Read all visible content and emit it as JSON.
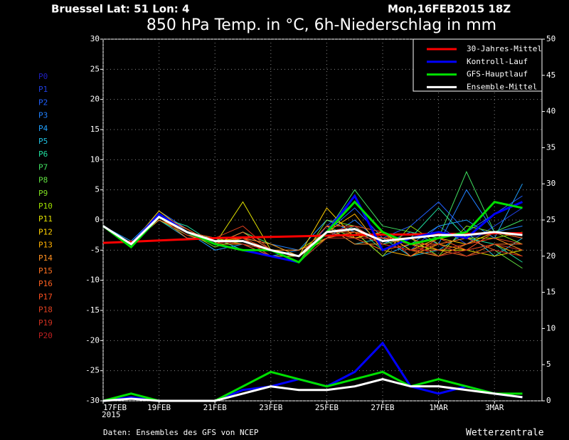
{
  "chart_data": {
    "type": "line",
    "location": "Bruessel  Lat: 51 Lon: 4",
    "run": "Mon,16FEB2015 18Z",
    "title": "850 hPa Temp. in °C, 6h-Niederschlag in mm",
    "source": "Daten: Ensembles des GFS von NCEP",
    "credit": "Wetterzentrale",
    "x_year": "2015",
    "xlim": [
      0,
      15.7
    ],
    "xticks": [
      {
        "value": 0,
        "label": "17FEB"
      },
      {
        "value": 2,
        "label": "19FEB"
      },
      {
        "value": 4,
        "label": "21FEB"
      },
      {
        "value": 6,
        "label": "23FEB"
      },
      {
        "value": 8,
        "label": "25FEB"
      },
      {
        "value": 10,
        "label": "27FEB"
      },
      {
        "value": 12,
        "label": "1MAR"
      },
      {
        "value": 14,
        "label": "3MAR"
      }
    ],
    "ylim": [
      -30,
      30
    ],
    "yticks": [
      -30,
      -25,
      -20,
      -15,
      -10,
      -5,
      0,
      5,
      10,
      15,
      20,
      25,
      30
    ],
    "y2lim": [
      0,
      50
    ],
    "y2ticks": [
      0,
      5,
      10,
      15,
      20,
      25,
      30,
      35,
      40,
      45,
      50
    ],
    "grid": true,
    "x": [
      0,
      1,
      2,
      3,
      4,
      5,
      6,
      7,
      8,
      9,
      10,
      11,
      12,
      13,
      14,
      15
    ],
    "series": [
      {
        "name": "P0",
        "color": "#2020c0",
        "values": [
          -1,
          -4,
          1,
          -2,
          -4,
          -3,
          -6,
          -6,
          -2,
          -1,
          -4,
          -3,
          -2,
          -3,
          -2,
          -3
        ]
      },
      {
        "name": "P1",
        "color": "#2040e0",
        "values": [
          -1,
          -4.5,
          0.5,
          -2.5,
          -3,
          -4,
          -5,
          -7,
          -1,
          3,
          -2,
          -5,
          -1,
          -4,
          -1,
          2
        ]
      },
      {
        "name": "P2",
        "color": "#2060ff",
        "values": [
          -1,
          -4,
          1.5,
          -1.5,
          -4,
          -2,
          -5,
          -6,
          -2,
          2,
          -3,
          -1,
          3,
          -2,
          1,
          4
        ]
      },
      {
        "name": "P3",
        "color": "#2080ff",
        "values": [
          -1,
          -4,
          0.5,
          -2,
          -3,
          -3,
          -4,
          -5,
          -3,
          0,
          -4,
          -2,
          -4,
          5,
          -2,
          -1
        ]
      },
      {
        "name": "P4",
        "color": "#20a0ff",
        "values": [
          -1,
          -3.5,
          1,
          -2,
          -5,
          -4,
          -6,
          -5,
          0,
          -2,
          -6,
          -4,
          -1,
          0,
          -3,
          6
        ]
      },
      {
        "name": "P5",
        "color": "#20c0e0",
        "values": [
          -1,
          -4,
          0,
          -3,
          -3,
          -5,
          -5,
          -6,
          -1,
          -4,
          -3,
          -6,
          -5,
          -2,
          -6,
          -3
        ]
      },
      {
        "name": "P6",
        "color": "#20e0a0",
        "values": [
          -1,
          -4,
          0.5,
          -1,
          -4,
          -3,
          -6,
          -7,
          -3,
          -1,
          -5,
          -3,
          2,
          -3,
          -4,
          -7
        ]
      },
      {
        "name": "P7",
        "color": "#40e060",
        "values": [
          -1,
          -4.5,
          1,
          -2,
          -4,
          -2,
          -4,
          -6,
          -2,
          5,
          -1,
          -2,
          -3,
          8,
          -2,
          0
        ]
      },
      {
        "name": "P8",
        "color": "#60e040",
        "values": [
          -1,
          -4,
          0,
          -2.5,
          -3,
          -4,
          -5,
          -6,
          -1,
          -3,
          -2,
          -5,
          -4,
          -6,
          -5,
          -8
        ]
      },
      {
        "name": "P9",
        "color": "#80e020",
        "values": [
          -1,
          -4,
          0.5,
          -2,
          -4.5,
          -3,
          -6,
          -7,
          0,
          -1,
          -4,
          -3,
          -6,
          -1,
          -2,
          -4
        ]
      },
      {
        "name": "P10",
        "color": "#a0e000",
        "values": [
          -1,
          -4,
          1,
          -2,
          -3,
          -4,
          -5,
          -5,
          -2,
          -2,
          -6,
          -1,
          -4,
          -3,
          -3,
          -2
        ]
      },
      {
        "name": "P11",
        "color": "#e0e000",
        "values": [
          -1,
          -4.5,
          0.5,
          -1.5,
          -4,
          3,
          -5,
          -6,
          -3,
          -2,
          -3,
          -4,
          -5,
          -5,
          -6,
          -5
        ]
      },
      {
        "name": "P12",
        "color": "#ffd000",
        "values": [
          -1,
          -4,
          1.5,
          -2,
          -3.5,
          -3,
          -6,
          -6,
          2,
          -3,
          -2,
          -5,
          -3,
          -4,
          -2,
          -3
        ]
      },
      {
        "name": "P13",
        "color": "#ffb000",
        "values": [
          -1,
          -4,
          0.5,
          -2.5,
          -4,
          -4,
          -5,
          -7,
          -2,
          1,
          -5,
          -6,
          -4,
          -5,
          -4,
          -6
        ]
      },
      {
        "name": "P14",
        "color": "#ff9020",
        "values": [
          -1,
          -4,
          1,
          -2,
          -3,
          -3,
          -4,
          -6,
          -1,
          -4,
          -4,
          -5,
          -6,
          -4,
          -3,
          -5
        ]
      },
      {
        "name": "P15",
        "color": "#ff7020",
        "values": [
          -1,
          -4,
          0,
          -2,
          -4,
          -2,
          -5,
          -5,
          -3,
          -2,
          -3,
          -3,
          -5,
          -6,
          -4,
          -4
        ]
      },
      {
        "name": "P16",
        "color": "#ff6020",
        "values": [
          -1,
          -4.5,
          0.5,
          -3,
          -3.5,
          -4,
          -6,
          -7,
          -2,
          -3,
          -5,
          -4,
          -4,
          -3,
          -5,
          -6
        ]
      },
      {
        "name": "P17",
        "color": "#ff5020",
        "values": [
          -1,
          -4,
          1,
          -1.5,
          -4,
          -3,
          -5,
          -6,
          -1,
          -1,
          -2,
          -6,
          -3,
          -5,
          -2,
          -3
        ]
      },
      {
        "name": "P18",
        "color": "#e04020",
        "values": [
          -1,
          -4,
          0.5,
          -2,
          -3,
          -1,
          -5,
          -6,
          -2,
          -2,
          -4,
          -5,
          -5,
          -4,
          -3,
          -4
        ]
      },
      {
        "name": "P19",
        "color": "#d03020",
        "values": [
          -1,
          -4,
          1,
          -2,
          -4,
          -3,
          -6,
          -7,
          -3,
          -3,
          -3,
          -4,
          -6,
          -5,
          -4,
          -5
        ]
      },
      {
        "name": "P20",
        "color": "#c02020",
        "values": [
          -1,
          -4,
          0.5,
          -2.5,
          -3.5,
          -4,
          -5,
          -6,
          -2,
          -1,
          -4,
          -5,
          -4,
          -6,
          -5,
          -6
        ]
      },
      {
        "name": "30-Jahres-Mittel",
        "color": "#ff0000",
        "values": [
          -3.8,
          -3.6,
          -3.4,
          -3.2,
          -3,
          -2.9,
          -2.8,
          -2.7,
          -2.6,
          -2.5,
          -2.4,
          -2.4,
          -2.3,
          -2.3,
          -2.2,
          -2.2
        ]
      },
      {
        "name": "Kontroll-Lauf",
        "color": "#0000ff",
        "values": [
          -1,
          -4,
          1,
          -2,
          -4,
          -5,
          -6,
          -7,
          -2,
          4,
          -5,
          -3,
          -2,
          -3,
          1,
          3
        ]
      },
      {
        "name": "GFS-Hauptlauf",
        "color": "#00e000",
        "values": [
          -1,
          -4.5,
          0.5,
          -2,
          -4,
          -5,
          -5,
          -7,
          -2,
          3,
          -2,
          -4,
          -3,
          -2,
          3,
          2
        ]
      },
      {
        "name": "Ensemble-Mittel",
        "color": "#ffffff",
        "values": [
          -1,
          -4,
          0.5,
          -2,
          -3.5,
          -3.5,
          -5,
          -6,
          -2,
          -1.5,
          -3.5,
          -3,
          -2.5,
          -2.5,
          -2,
          -2.5
        ]
      },
      {
        "color": "#0000ff",
        "axis": "y2",
        "values": [
          0,
          0.5,
          0,
          0,
          0,
          1.5,
          2,
          3,
          2,
          4,
          8,
          2,
          1,
          2,
          1,
          0.5
        ]
      },
      {
        "color": "#00e000",
        "axis": "y2",
        "values": [
          0,
          1,
          0,
          0,
          0,
          2,
          4,
          3,
          2,
          3,
          4,
          2,
          3,
          2,
          1,
          1
        ]
      },
      {
        "color": "#ffffff",
        "axis": "y2",
        "values": [
          0,
          0.3,
          0,
          0,
          0,
          1,
          2,
          1.5,
          1.5,
          2,
          3,
          2,
          2,
          1.5,
          1,
          0.5
        ]
      }
    ]
  }
}
